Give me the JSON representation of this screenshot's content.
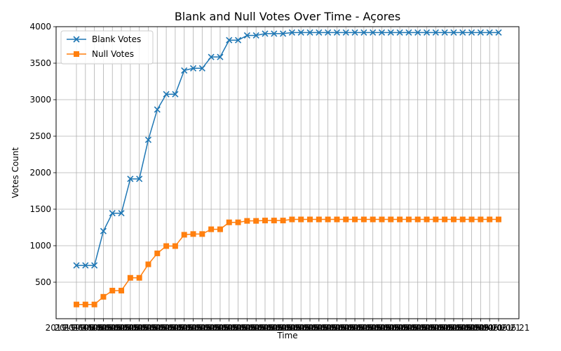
{
  "chart_data": {
    "type": "line",
    "title": "Blank and Null Votes Over Time - Açores",
    "xlabel": "Time",
    "ylabel": "Votes Count",
    "x_count": 48,
    "x_tick_label": "2019-10-06 21",
    "ylim": [
      0,
      4000
    ],
    "yticks": [
      500,
      1000,
      1500,
      2000,
      2500,
      3000,
      3500,
      4000
    ],
    "grid": true,
    "legend_position": "top-left",
    "series": [
      {
        "name": "Blank Votes",
        "color": "#1f77b4",
        "marker": "x",
        "values": [
          730,
          730,
          730,
          1200,
          1445,
          1445,
          1915,
          1915,
          2450,
          2865,
          3075,
          3075,
          3400,
          3430,
          3430,
          3585,
          3585,
          3815,
          3815,
          3880,
          3880,
          3905,
          3905,
          3905,
          3920,
          3920,
          3920,
          3920,
          3920,
          3920,
          3920,
          3920,
          3920,
          3920,
          3920,
          3920,
          3920,
          3920,
          3920,
          3920,
          3920,
          3920,
          3920,
          3920,
          3920,
          3920,
          3920,
          3920
        ]
      },
      {
        "name": "Null Votes",
        "color": "#ff7f0e",
        "marker": "s",
        "values": [
          195,
          195,
          195,
          300,
          385,
          385,
          560,
          560,
          745,
          895,
          995,
          995,
          1150,
          1160,
          1160,
          1225,
          1225,
          1320,
          1320,
          1340,
          1340,
          1345,
          1345,
          1345,
          1360,
          1360,
          1360,
          1360,
          1360,
          1360,
          1360,
          1360,
          1360,
          1360,
          1360,
          1360,
          1360,
          1360,
          1360,
          1360,
          1360,
          1360,
          1360,
          1360,
          1360,
          1360,
          1360,
          1360
        ]
      }
    ]
  }
}
